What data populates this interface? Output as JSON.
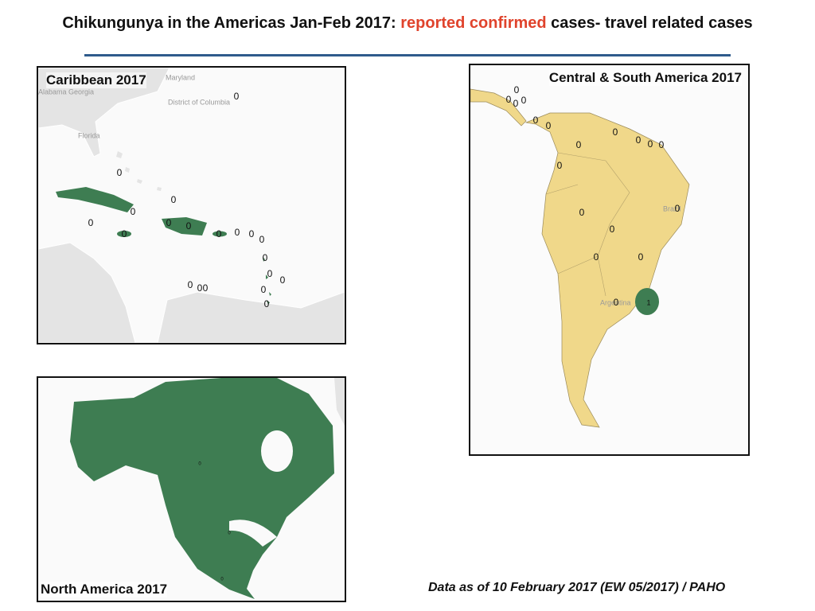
{
  "title": {
    "before": "Chikungunya in the Americas Jan-Feb 2017: ",
    "highlight": "reported confirmed",
    "after": " cases- travel related cases"
  },
  "panels": [
    {
      "title": "Caribbean 2017",
      "places": [
        "Maryland",
        "Alabama Georgia",
        "District of Columbia",
        "Florida"
      ],
      "counts": [
        0,
        0,
        0,
        0,
        0,
        0,
        0,
        0,
        0,
        0,
        0,
        0,
        0,
        0,
        0,
        0,
        0,
        0,
        0,
        0
      ]
    },
    {
      "title": "Central & South America  2017",
      "places": [
        "Brazil",
        "Argentina"
      ],
      "counts": [
        0,
        0,
        0,
        0,
        0,
        0,
        0,
        0,
        0,
        0,
        0,
        0,
        0,
        0,
        0,
        0,
        0,
        0,
        1
      ]
    },
    {
      "title": "North America  2017",
      "places": [],
      "counts": [
        0,
        0,
        0
      ]
    }
  ],
  "footer": "Data as of 10 February 2017 (EW 05/2017) / PAHO"
}
